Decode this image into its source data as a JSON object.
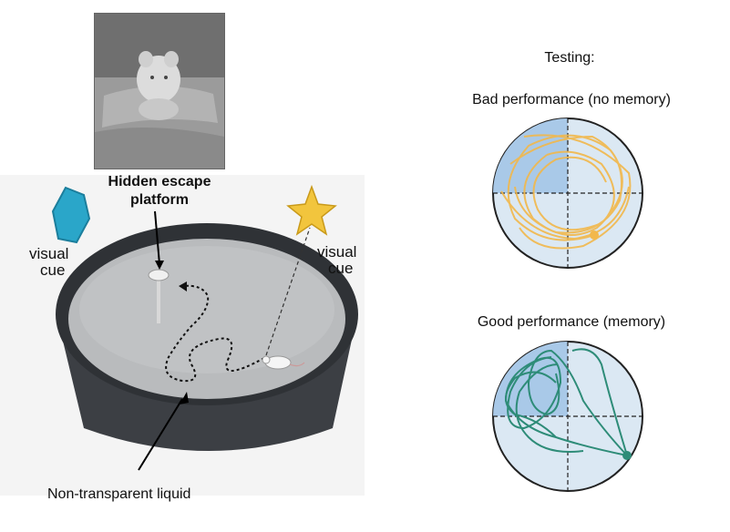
{
  "left_panel": {
    "platform_label_line1": "Hidden escape",
    "platform_label_line2": "platform",
    "cue_left_line1": "visual",
    "cue_left_line2": "cue",
    "cue_right_line1": "visual",
    "cue_right_line2": "cue",
    "liquid_label": "Non-transparent liquid"
  },
  "right_panel": {
    "heading": "Testing:",
    "bad_title": "Bad performance (no memory)",
    "good_title": "Good performance (memory)"
  },
  "colors": {
    "bad_path": "#f2b84b",
    "good_path": "#2e8c78",
    "quadrant_fill": "#a9c9e8",
    "pool_fill": "#dbe8f3",
    "tub_dark": "#3c3f44",
    "water": "#b9bbbd",
    "cue_hexagon": "#2aa6c9",
    "cue_star": "#f2c53d"
  }
}
